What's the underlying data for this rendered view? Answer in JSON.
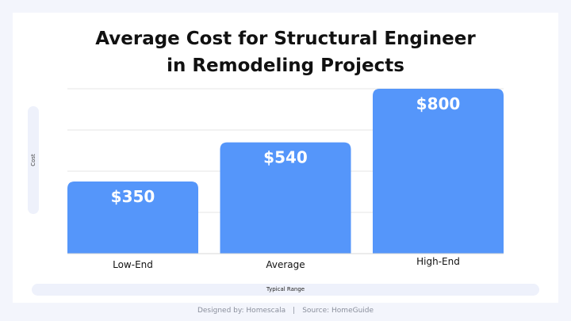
{
  "footer": {
    "designed_by": "Designed by: Homescala",
    "separator": "|",
    "source": "Source: HomeGuide"
  },
  "chart_data": {
    "type": "bar",
    "title_lines": [
      "Average Cost for Structural Engineer",
      "in Remodeling Projects"
    ],
    "xlabel": "Typical Range",
    "ylabel": "Cost",
    "categories": [
      "Low-End",
      "Average",
      "High-End"
    ],
    "values": [
      350,
      540,
      800
    ],
    "data_labels": [
      "$350",
      "$540",
      "$800"
    ],
    "ylim": [
      0,
      800
    ],
    "grid": true,
    "legend": "none",
    "bar_color": "#5596fa"
  }
}
